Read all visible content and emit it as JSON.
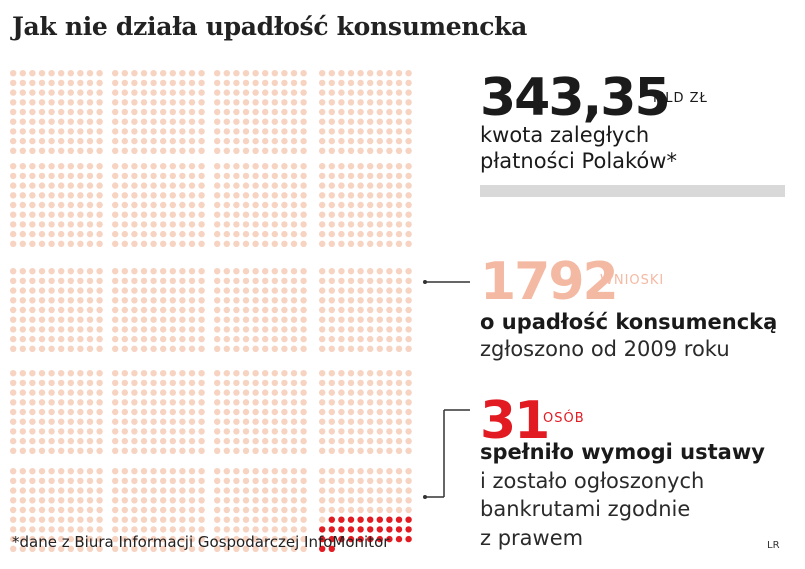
{
  "title": "Jak nie działa upadłość konsumencka",
  "stats": {
    "total": {
      "value": "343,35",
      "unit": "MLD ZŁ",
      "desc_line1": "kwota zaległych",
      "desc_line2": "płatności Polaków*",
      "color": "#1b1b1b"
    },
    "applications": {
      "value": "1792",
      "unit": "WNIOSKI",
      "desc_bold": "o upadłość konsumencką",
      "desc_line": "zgłoszono od 2009 roku",
      "color": "#f4b9a3"
    },
    "approved": {
      "value": "31",
      "unit": "OSÓB",
      "desc_bold": "spełniło wymogi ustawy",
      "desc_line1": "i zostało ogłoszonych",
      "desc_line2": "bankrutami zgodnie",
      "desc_line3": "z prawem",
      "color": "#e21b23"
    }
  },
  "chart_data": {
    "type": "unit-dot-grid",
    "series": [
      {
        "name": "WNIOSKI",
        "values": [
          1792
        ],
        "color": "#f4b9a3"
      },
      {
        "name": "OSÓB",
        "values": [
          31
        ],
        "color": "#e21b23"
      }
    ]
  },
  "footnote": "*dane z Biura Informacji Gospodarczej InfoMonitor",
  "credit": "LR",
  "colors": {
    "light_dot": "#f7d3c2",
    "red": "#e21b23",
    "peach": "#f4b9a3",
    "gray_bar": "#d9d9d9",
    "connector": "#333333"
  }
}
